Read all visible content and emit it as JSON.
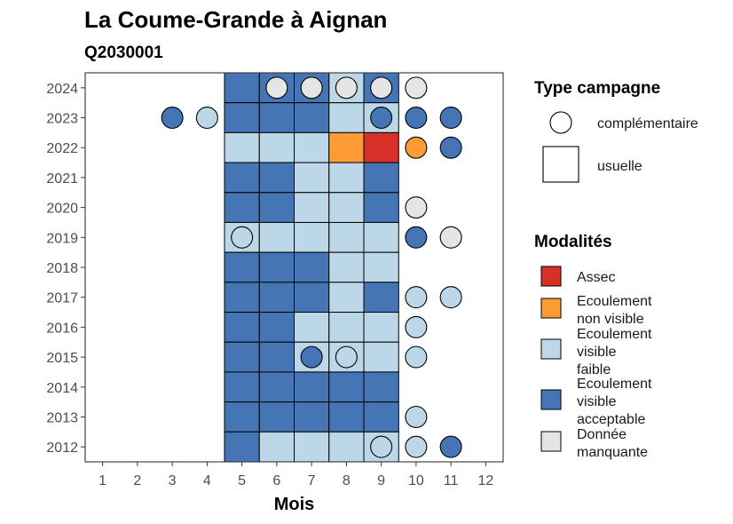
{
  "chart_data": {
    "type": "heatmap",
    "title": "La Coume-Grande à Aignan",
    "subtitle": "Q2030001",
    "xlabel": "Mois",
    "ylabel": "",
    "x_ticks": [
      1,
      2,
      3,
      4,
      5,
      6,
      7,
      8,
      9,
      10,
      11,
      12
    ],
    "y_ticks": [
      2024,
      2023,
      2022,
      2021,
      2020,
      2019,
      2018,
      2017,
      2016,
      2015,
      2014,
      2013,
      2012
    ],
    "colors": {
      "A": "#d73027",
      "O": "#fd9c35",
      "F": "#bcd7e7",
      "V": "#4575b4",
      "N": "#e5e5e5"
    },
    "legend_type": {
      "title": "Type campagne",
      "entries": [
        {
          "shape": "circle",
          "label": "complémentaire"
        },
        {
          "shape": "square",
          "label": "usuelle"
        }
      ]
    },
    "legend_modalites": {
      "title": "Modalités",
      "entries": [
        {
          "key": "A",
          "lines": [
            "Assec"
          ]
        },
        {
          "key": "O",
          "lines": [
            "Ecoulement",
            "non visible"
          ]
        },
        {
          "key": "F",
          "lines": [
            "Ecoulement",
            "visible",
            "faible"
          ]
        },
        {
          "key": "V",
          "lines": [
            "Ecoulement",
            "visible",
            "acceptable"
          ]
        },
        {
          "key": "N",
          "lines": [
            "Donnée",
            "manquante"
          ]
        }
      ]
    },
    "usual_grid": {
      "months": [
        5,
        6,
        7,
        8,
        9
      ],
      "rows": {
        "2024": [
          "V",
          "V",
          "V",
          "F",
          "V"
        ],
        "2023": [
          "V",
          "V",
          "V",
          "F",
          "F"
        ],
        "2022": [
          "F",
          "F",
          "F",
          "O",
          "A"
        ],
        "2021": [
          "V",
          "V",
          "F",
          "F",
          "V"
        ],
        "2020": [
          "V",
          "V",
          "F",
          "F",
          "V"
        ],
        "2019": [
          "F",
          "F",
          "F",
          "F",
          "F"
        ],
        "2018": [
          "V",
          "V",
          "V",
          "F",
          "F"
        ],
        "2017": [
          "V",
          "V",
          "V",
          "F",
          "V"
        ],
        "2016": [
          "V",
          "V",
          "F",
          "F",
          "F"
        ],
        "2015": [
          "V",
          "V",
          "F",
          "F",
          "F"
        ],
        "2014": [
          "V",
          "V",
          "V",
          "V",
          "V"
        ],
        "2013": [
          "V",
          "V",
          "V",
          "V",
          "V"
        ],
        "2012": [
          "V",
          "F",
          "F",
          "F",
          "F"
        ]
      }
    },
    "complementary_points": [
      {
        "year": 2024,
        "month": 6,
        "value": "N"
      },
      {
        "year": 2024,
        "month": 7,
        "value": "N"
      },
      {
        "year": 2024,
        "month": 8,
        "value": "N"
      },
      {
        "year": 2024,
        "month": 9,
        "value": "N"
      },
      {
        "year": 2024,
        "month": 10,
        "value": "N"
      },
      {
        "year": 2023,
        "month": 3,
        "value": "V"
      },
      {
        "year": 2023,
        "month": 4,
        "value": "F"
      },
      {
        "year": 2023,
        "month": 9,
        "value": "V"
      },
      {
        "year": 2023,
        "month": 10,
        "value": "V"
      },
      {
        "year": 2023,
        "month": 11,
        "value": "V"
      },
      {
        "year": 2022,
        "month": 10,
        "value": "O"
      },
      {
        "year": 2022,
        "month": 11,
        "value": "V"
      },
      {
        "year": 2020,
        "month": 10,
        "value": "N"
      },
      {
        "year": 2019,
        "month": 5,
        "value": "F"
      },
      {
        "year": 2019,
        "month": 10,
        "value": "V"
      },
      {
        "year": 2019,
        "month": 11,
        "value": "N"
      },
      {
        "year": 2017,
        "month": 10,
        "value": "F"
      },
      {
        "year": 2017,
        "month": 11,
        "value": "F"
      },
      {
        "year": 2016,
        "month": 10,
        "value": "F"
      },
      {
        "year": 2015,
        "month": 7,
        "value": "V"
      },
      {
        "year": 2015,
        "month": 8,
        "value": "F"
      },
      {
        "year": 2015,
        "month": 10,
        "value": "F"
      },
      {
        "year": 2013,
        "month": 10,
        "value": "F"
      },
      {
        "year": 2012,
        "month": 9,
        "value": "F"
      },
      {
        "year": 2012,
        "month": 10,
        "value": "F"
      },
      {
        "year": 2012,
        "month": 11,
        "value": "V"
      }
    ]
  }
}
